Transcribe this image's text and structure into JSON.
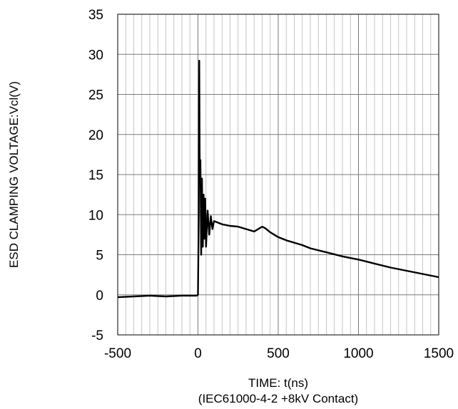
{
  "chart_data": {
    "type": "line",
    "title": "",
    "xlabel": "TIME: t(ns)",
    "xlabel_sub": "(IEC61000-4-2 +8kV Contact)",
    "ylabel": "ESD CLAMPING VOLTAGE:Vcl(V)",
    "xlim": [
      -500,
      1500
    ],
    "ylim": [
      -5,
      35
    ],
    "x_major_ticks": [
      -500,
      0,
      500,
      1000,
      1500
    ],
    "x_minor_step": 50,
    "y_ticks": [
      -5,
      0,
      5,
      10,
      15,
      20,
      25,
      30,
      35
    ],
    "x_tick_labels": [
      "-500",
      "0",
      "500",
      "1000",
      "1500"
    ],
    "y_tick_labels": [
      "-5",
      "0",
      "5",
      "10",
      "15",
      "20",
      "25",
      "30",
      "35"
    ],
    "grid": true,
    "series": [
      {
        "x": [
          -500,
          -400,
          -300,
          -200,
          -100,
          -10,
          0,
          5,
          8,
          10,
          12,
          15,
          20,
          25,
          30,
          35,
          40,
          45,
          50,
          60,
          70,
          80,
          90,
          100,
          150,
          200,
          250,
          300,
          350,
          400,
          420,
          450,
          500,
          550,
          600,
          650,
          700,
          800,
          900,
          1000,
          1100,
          1200,
          1300,
          1400,
          1500
        ],
        "y": [
          -0.3,
          -0.2,
          -0.1,
          -0.2,
          -0.1,
          -0.1,
          0.0,
          10.0,
          29.2,
          18.0,
          14.0,
          16.8,
          5.0,
          14.5,
          6.0,
          12.5,
          7.0,
          12.0,
          6.0,
          10.5,
          7.5,
          9.8,
          8.2,
          9.2,
          8.8,
          8.6,
          8.5,
          8.2,
          7.9,
          8.5,
          8.3,
          7.8,
          7.2,
          6.8,
          6.5,
          6.2,
          5.8,
          5.3,
          4.8,
          4.4,
          3.9,
          3.4,
          3.0,
          2.6,
          2.2
        ],
        "color": "#000000"
      }
    ]
  }
}
